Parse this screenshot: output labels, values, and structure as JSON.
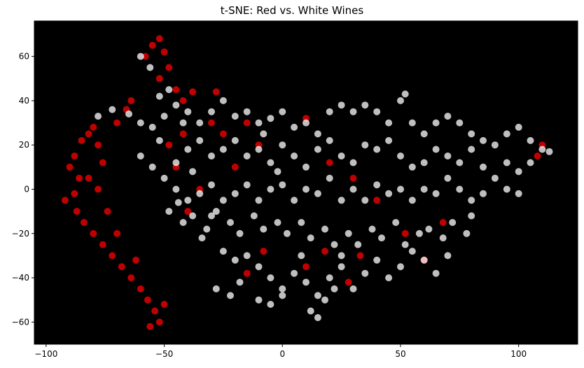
{
  "chart_data": {
    "type": "scatter",
    "title": "t-SNE: Red vs. White Wines",
    "xlabel": "",
    "ylabel": "",
    "xlim": [
      -105,
      125
    ],
    "ylim": [
      -70,
      76
    ],
    "xticks": [
      -100,
      -50,
      0,
      50,
      100
    ],
    "yticks": [
      -60,
      -40,
      -20,
      0,
      20,
      40,
      60
    ],
    "grid": false,
    "legend": "none",
    "background": "#000000",
    "series": [
      {
        "color": "#ff0000",
        "points": [
          [
            -90,
            10
          ],
          [
            -88,
            15
          ],
          [
            -85,
            22
          ],
          [
            -82,
            25
          ],
          [
            -80,
            28
          ],
          [
            -78,
            20
          ],
          [
            -86,
            5
          ],
          [
            -88,
            -2
          ],
          [
            -87,
            -10
          ],
          [
            -84,
            -15
          ],
          [
            -80,
            -20
          ],
          [
            -76,
            -25
          ],
          [
            -72,
            -30
          ],
          [
            -68,
            -35
          ],
          [
            -64,
            -40
          ],
          [
            -60,
            -45
          ],
          [
            -57,
            -50
          ],
          [
            -54,
            -55
          ],
          [
            -52,
            -60
          ],
          [
            -50,
            -52
          ],
          [
            -56,
            -62
          ],
          [
            -62,
            -32
          ],
          [
            -70,
            -20
          ],
          [
            -74,
            -10
          ],
          [
            -78,
            0
          ],
          [
            -82,
            5
          ],
          [
            -76,
            12
          ],
          [
            -70,
            30
          ],
          [
            -66,
            36
          ],
          [
            -64,
            40
          ],
          [
            -58,
            60
          ],
          [
            -55,
            65
          ],
          [
            -52,
            68
          ],
          [
            -50,
            62
          ],
          [
            -48,
            55
          ],
          [
            -52,
            50
          ],
          [
            -45,
            45
          ],
          [
            -42,
            40
          ],
          [
            -38,
            44
          ],
          [
            -30,
            30
          ],
          [
            -25,
            25
          ],
          [
            -20,
            10
          ],
          [
            -35,
            0
          ],
          [
            -40,
            -10
          ],
          [
            -45,
            10
          ],
          [
            -48,
            20
          ],
          [
            -42,
            25
          ],
          [
            -28,
            44
          ],
          [
            -15,
            30
          ],
          [
            -10,
            20
          ],
          [
            10,
            32
          ],
          [
            20,
            12
          ],
          [
            30,
            5
          ],
          [
            40,
            -5
          ],
          [
            52,
            -20
          ],
          [
            60,
            -32
          ],
          [
            68,
            -15
          ],
          [
            -15,
            -38
          ],
          [
            -8,
            -28
          ],
          [
            10,
            -35
          ],
          [
            18,
            -28
          ],
          [
            28,
            -42
          ],
          [
            33,
            -30
          ],
          [
            108,
            15
          ],
          [
            110,
            20
          ],
          [
            -92,
            -5
          ]
        ]
      },
      {
        "color": "#ffffff",
        "points": [
          [
            -78,
            33
          ],
          [
            -72,
            36
          ],
          [
            -65,
            34
          ],
          [
            -60,
            30
          ],
          [
            -55,
            28
          ],
          [
            -50,
            33
          ],
          [
            -45,
            38
          ],
          [
            -40,
            35
          ],
          [
            -35,
            30
          ],
          [
            -30,
            35
          ],
          [
            -25,
            40
          ],
          [
            -20,
            33
          ],
          [
            -15,
            35
          ],
          [
            -10,
            30
          ],
          [
            -5,
            32
          ],
          [
            0,
            35
          ],
          [
            5,
            28
          ],
          [
            10,
            30
          ],
          [
            15,
            25
          ],
          [
            20,
            35
          ],
          [
            25,
            38
          ],
          [
            30,
            35
          ],
          [
            35,
            38
          ],
          [
            40,
            35
          ],
          [
            45,
            30
          ],
          [
            50,
            40
          ],
          [
            52,
            43
          ],
          [
            55,
            30
          ],
          [
            60,
            25
          ],
          [
            65,
            30
          ],
          [
            70,
            33
          ],
          [
            75,
            30
          ],
          [
            80,
            25
          ],
          [
            85,
            22
          ],
          [
            90,
            20
          ],
          [
            95,
            25
          ],
          [
            100,
            28
          ],
          [
            105,
            22
          ],
          [
            110,
            18
          ],
          [
            113,
            17
          ],
          [
            -60,
            15
          ],
          [
            -55,
            10
          ],
          [
            -50,
            5
          ],
          [
            -45,
            12
          ],
          [
            -40,
            18
          ],
          [
            -35,
            22
          ],
          [
            -30,
            15
          ],
          [
            -25,
            18
          ],
          [
            -20,
            22
          ],
          [
            -15,
            15
          ],
          [
            -10,
            18
          ],
          [
            -5,
            12
          ],
          [
            0,
            20
          ],
          [
            5,
            15
          ],
          [
            10,
            10
          ],
          [
            15,
            18
          ],
          [
            20,
            22
          ],
          [
            25,
            15
          ],
          [
            30,
            12
          ],
          [
            35,
            20
          ],
          [
            40,
            18
          ],
          [
            45,
            22
          ],
          [
            50,
            15
          ],
          [
            55,
            10
          ],
          [
            60,
            12
          ],
          [
            65,
            18
          ],
          [
            70,
            15
          ],
          [
            75,
            12
          ],
          [
            80,
            18
          ],
          [
            85,
            10
          ],
          [
            90,
            5
          ],
          [
            95,
            12
          ],
          [
            100,
            8
          ],
          [
            105,
            12
          ],
          [
            -45,
            0
          ],
          [
            -40,
            -5
          ],
          [
            -35,
            -2
          ],
          [
            -30,
            2
          ],
          [
            -25,
            -5
          ],
          [
            -20,
            -2
          ],
          [
            -15,
            2
          ],
          [
            -10,
            -5
          ],
          [
            -5,
            0
          ],
          [
            0,
            2
          ],
          [
            5,
            -5
          ],
          [
            10,
            0
          ],
          [
            15,
            -2
          ],
          [
            20,
            5
          ],
          [
            25,
            -5
          ],
          [
            30,
            0
          ],
          [
            35,
            -5
          ],
          [
            40,
            2
          ],
          [
            45,
            -2
          ],
          [
            50,
            0
          ],
          [
            55,
            -5
          ],
          [
            60,
            0
          ],
          [
            65,
            -2
          ],
          [
            70,
            5
          ],
          [
            75,
            0
          ],
          [
            80,
            -5
          ],
          [
            85,
            -2
          ],
          [
            95,
            0
          ],
          [
            100,
            -2
          ],
          [
            -48,
            -10
          ],
          [
            -42,
            -15
          ],
          [
            -38,
            -12
          ],
          [
            -32,
            -18
          ],
          [
            -28,
            -10
          ],
          [
            -22,
            -15
          ],
          [
            -18,
            -20
          ],
          [
            -12,
            -12
          ],
          [
            -8,
            -18
          ],
          [
            -2,
            -15
          ],
          [
            2,
            -20
          ],
          [
            8,
            -15
          ],
          [
            12,
            -22
          ],
          [
            18,
            -18
          ],
          [
            22,
            -25
          ],
          [
            28,
            -20
          ],
          [
            32,
            -25
          ],
          [
            38,
            -18
          ],
          [
            42,
            -22
          ],
          [
            48,
            -15
          ],
          [
            52,
            -25
          ],
          [
            58,
            -20
          ],
          [
            62,
            -18
          ],
          [
            68,
            -22
          ],
          [
            72,
            -15
          ],
          [
            78,
            -20
          ],
          [
            80,
            -12
          ],
          [
            -25,
            -28
          ],
          [
            -20,
            -32
          ],
          [
            -15,
            -30
          ],
          [
            -10,
            -35
          ],
          [
            -5,
            -40
          ],
          [
            0,
            -45
          ],
          [
            5,
            -38
          ],
          [
            10,
            -42
          ],
          [
            15,
            -48
          ],
          [
            20,
            -40
          ],
          [
            25,
            -35
          ],
          [
            30,
            -45
          ],
          [
            35,
            -38
          ],
          [
            40,
            -32
          ],
          [
            45,
            -40
          ],
          [
            50,
            -35
          ],
          [
            55,
            -28
          ],
          [
            60,
            -32
          ],
          [
            65,
            -38
          ],
          [
            70,
            -30
          ],
          [
            -28,
            -45
          ],
          [
            -22,
            -48
          ],
          [
            -18,
            -42
          ],
          [
            -10,
            -50
          ],
          [
            -5,
            -52
          ],
          [
            0,
            -48
          ],
          [
            12,
            -55
          ],
          [
            15,
            -58
          ],
          [
            18,
            -50
          ],
          [
            22,
            -45
          ],
          [
            25,
            -30
          ],
          [
            8,
            -30
          ],
          [
            -30,
            -12
          ],
          [
            -34,
            -22
          ],
          [
            -8,
            25
          ],
          [
            -2,
            8
          ],
          [
            -38,
            8
          ],
          [
            -44,
            -6
          ],
          [
            -52,
            42
          ],
          [
            -56,
            55
          ],
          [
            -60,
            60
          ],
          [
            -48,
            45
          ],
          [
            -52,
            22
          ],
          [
            -42,
            30
          ]
        ]
      }
    ]
  }
}
